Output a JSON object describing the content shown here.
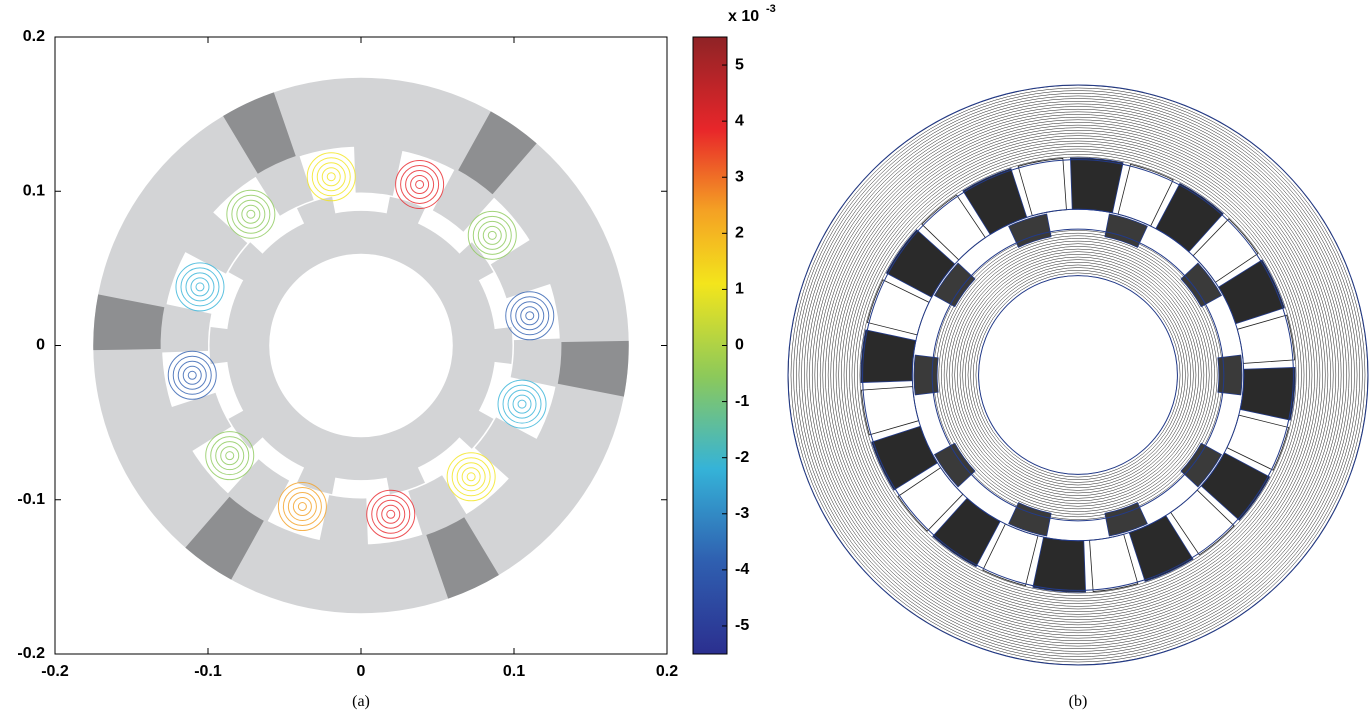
{
  "chart_data": [
    {
      "type": "field-plot",
      "xlim": [
        -0.2,
        0.2
      ],
      "ylim": [
        -0.2,
        0.2
      ],
      "xticks": [
        -0.2,
        -0.1,
        0,
        0.1,
        0.2
      ],
      "yticks": [
        -0.2,
        -0.1,
        0,
        0.1,
        0.2
      ],
      "colorbar": {
        "lim": [
          -5.5,
          5.5
        ],
        "ticks": [
          -5,
          -4,
          -3,
          -2,
          -1,
          0,
          1,
          2,
          3,
          4,
          5
        ],
        "label": "x 10",
        "exponent": "-3"
      },
      "caption": "(a)"
    },
    {
      "type": "flux-plot",
      "caption": "(b)"
    }
  ]
}
